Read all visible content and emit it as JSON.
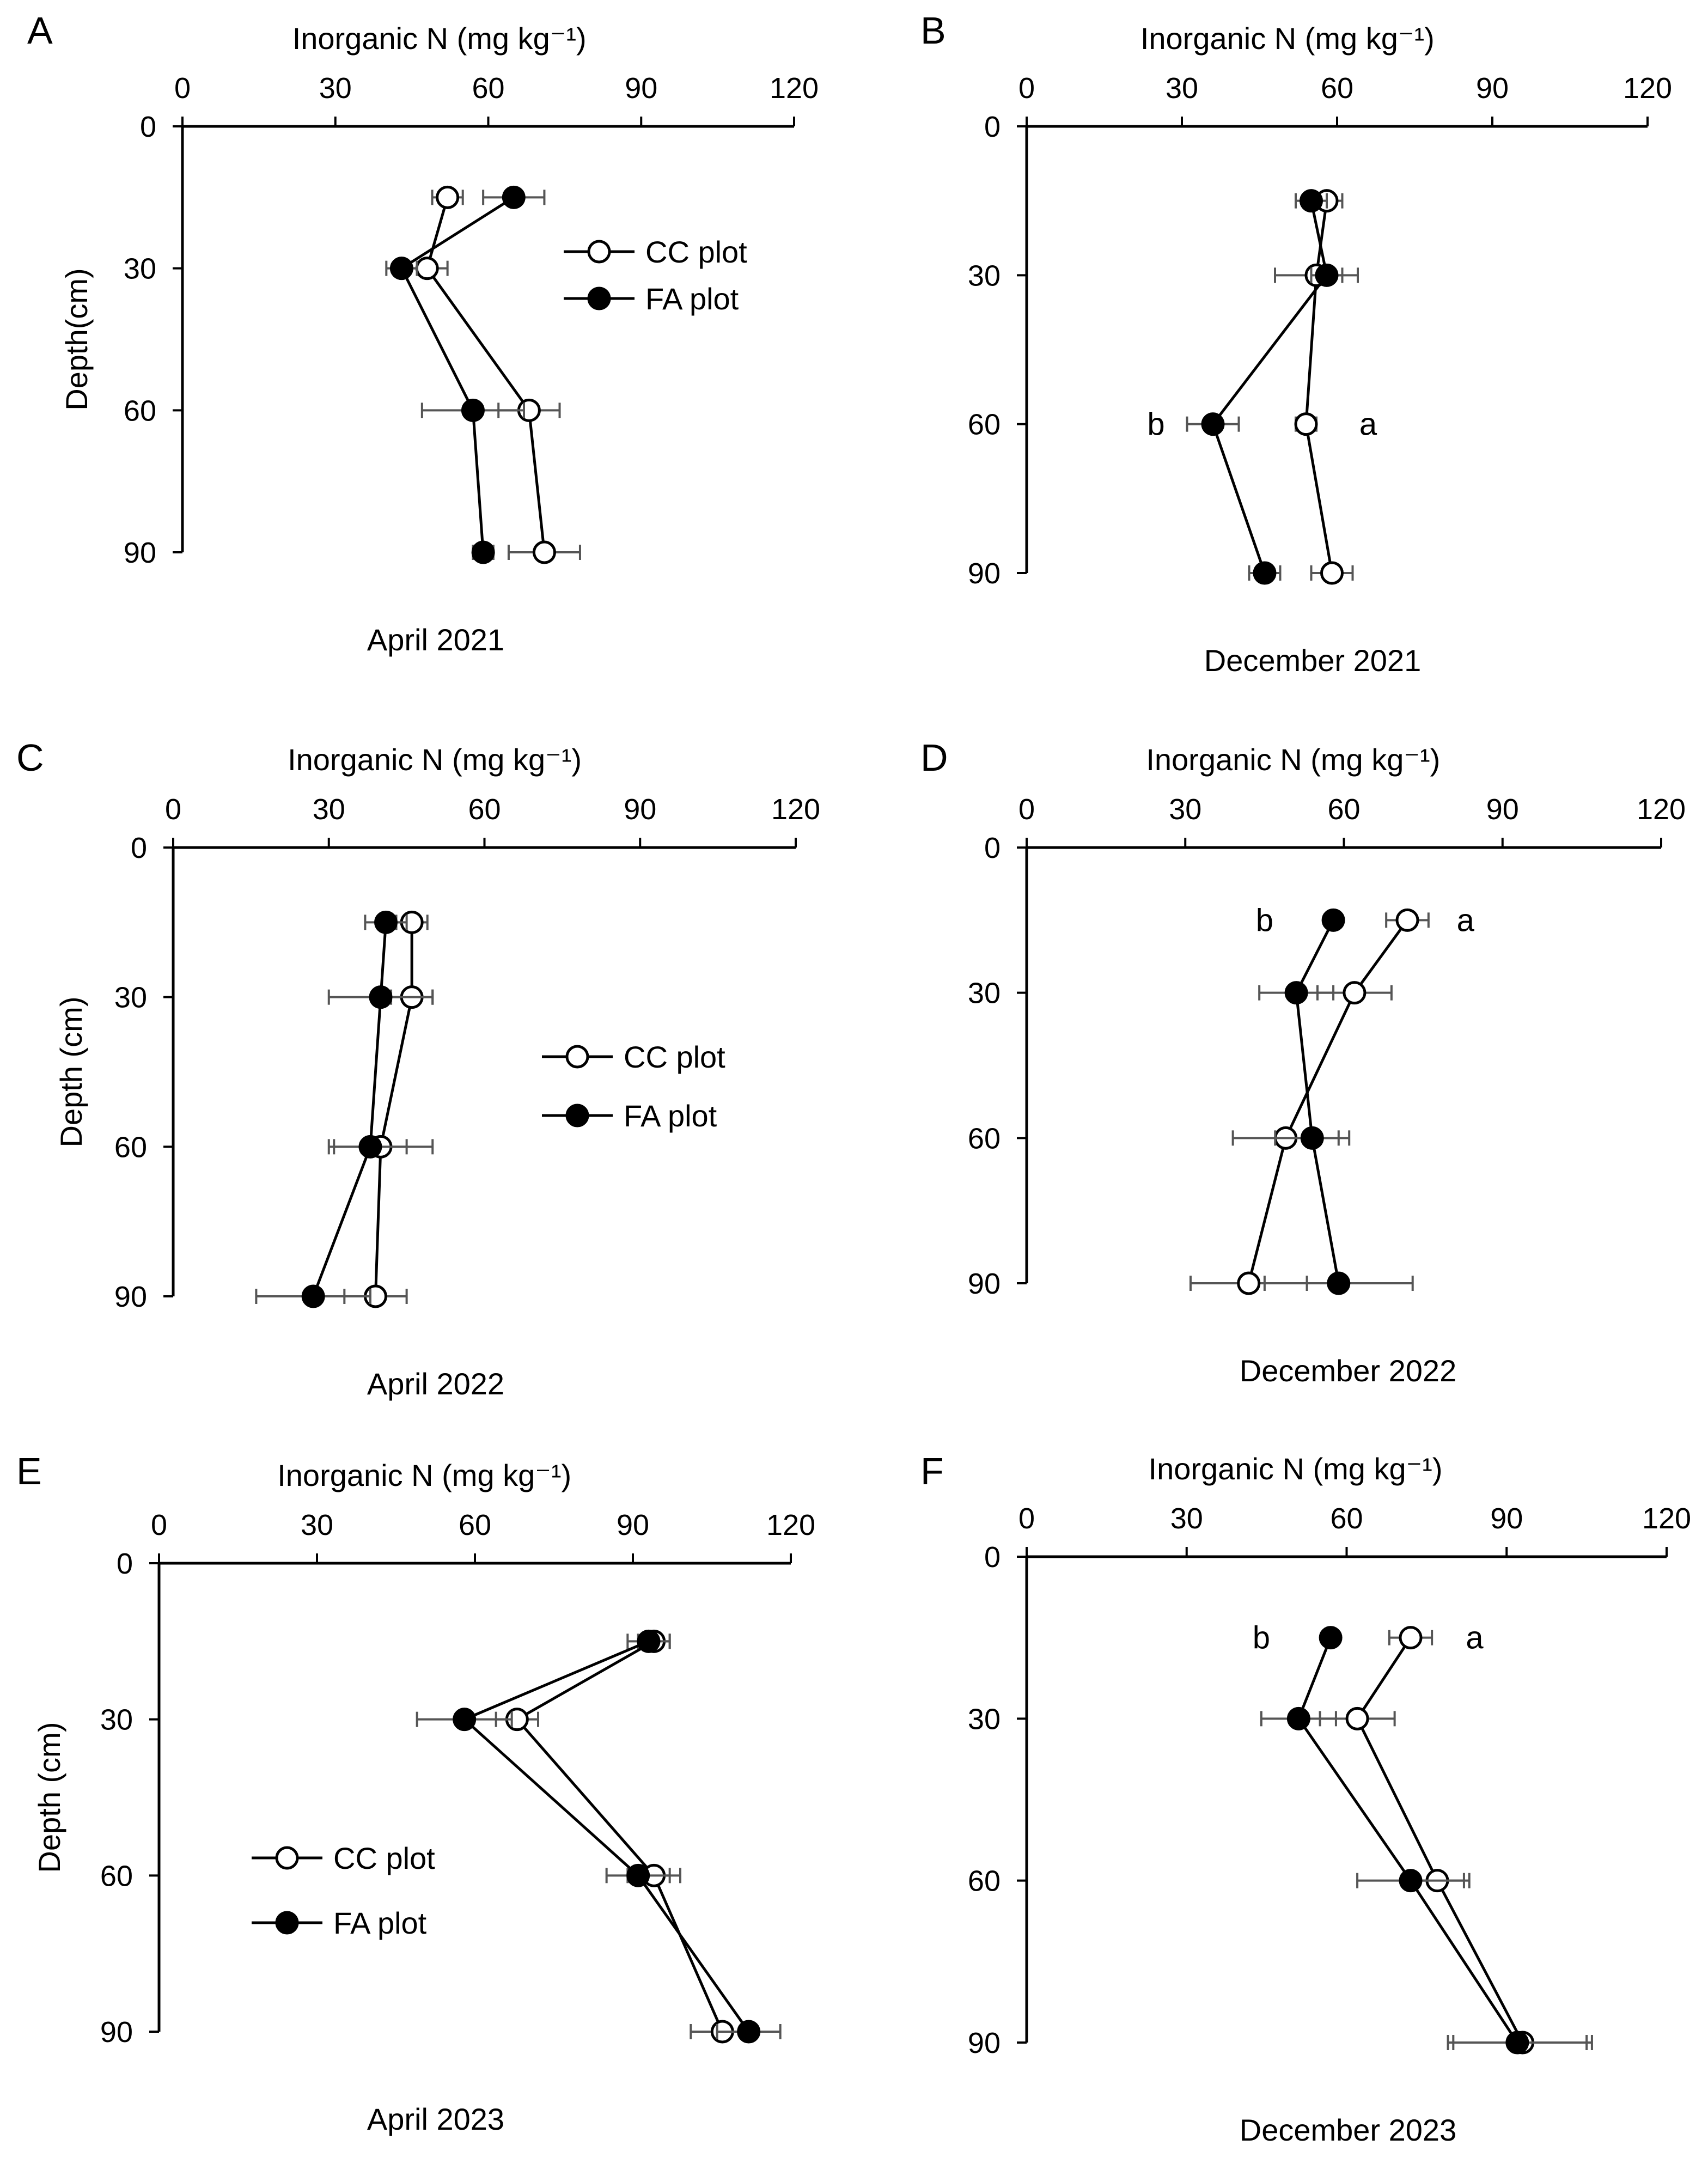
{
  "figure": {
    "panels": [
      {
        "letter": "A",
        "subtitle": "April 2021",
        "sig_labels": [],
        "chart_data": {
          "type": "line",
          "xlabel": "Inorganic N (mg kg⁻¹)",
          "ylabel": "Depth(cm)",
          "xlim": [
            0,
            120
          ],
          "ylim": [
            0,
            90
          ],
          "x_ticks": [
            "0",
            "30",
            "60",
            "90",
            "120"
          ],
          "y_ticks": [
            "0",
            "30",
            "60",
            "90"
          ],
          "legend_placement": "right-upper",
          "series": [
            {
              "name": "CC plot",
              "marker": "open-circle",
              "depth": [
                15,
                30,
                60,
                90
              ],
              "values": [
                52,
                48,
                68,
                71
              ],
              "err": [
                3,
                4,
                6,
                7
              ]
            },
            {
              "name": "FA plot",
              "marker": "filled-circle",
              "depth": [
                15,
                30,
                60,
                90
              ],
              "values": [
                65,
                43,
                57,
                59
              ],
              "err": [
                6,
                3,
                10,
                2
              ]
            }
          ]
        }
      },
      {
        "letter": "B",
        "subtitle": "December 2021",
        "sig_labels": [
          {
            "text": "b",
            "x": 25,
            "depth": 60
          },
          {
            "text": "a",
            "x": 66,
            "depth": 60
          }
        ],
        "chart_data": {
          "type": "line",
          "xlabel": "Inorganic N (mg kg⁻¹)",
          "ylabel": "",
          "xlim": [
            0,
            120
          ],
          "ylim": [
            0,
            90
          ],
          "x_ticks": [
            "0",
            "30",
            "60",
            "90",
            "120"
          ],
          "y_ticks": [
            "0",
            "30",
            "60",
            "90"
          ],
          "legend_placement": "none",
          "series": [
            {
              "name": "CC plot",
              "marker": "open-circle",
              "depth": [
                15,
                30,
                60,
                90
              ],
              "values": [
                58,
                56,
                54,
                59
              ],
              "err": [
                3,
                8,
                2,
                4
              ]
            },
            {
              "name": "FA plot",
              "marker": "filled-circle",
              "depth": [
                15,
                30,
                60,
                90
              ],
              "values": [
                55,
                58,
                36,
                46
              ],
              "err": [
                3,
                3,
                5,
                3
              ]
            }
          ]
        }
      },
      {
        "letter": "C",
        "subtitle": "April 2022",
        "sig_labels": [],
        "chart_data": {
          "type": "line",
          "xlabel": "Inorganic N (mg kg⁻¹)",
          "ylabel": "Depth (cm)",
          "xlim": [
            0,
            120
          ],
          "ylim": [
            0,
            90
          ],
          "x_ticks": [
            "0",
            "30",
            "60",
            "90",
            "120"
          ],
          "y_ticks": [
            "0",
            "30",
            "60",
            "90"
          ],
          "legend_placement": "right-middle",
          "series": [
            {
              "name": "CC plot",
              "marker": "open-circle",
              "depth": [
                15,
                30,
                60,
                90
              ],
              "values": [
                46,
                46,
                40,
                39
              ],
              "err": [
                3,
                4,
                10,
                6
              ]
            },
            {
              "name": "FA plot",
              "marker": "filled-circle",
              "depth": [
                15,
                30,
                60,
                90
              ],
              "values": [
                41,
                40,
                38,
                27
              ],
              "err": [
                4,
                10,
                7,
                11
              ]
            }
          ]
        }
      },
      {
        "letter": "D",
        "subtitle": "December 2022",
        "sig_labels": [
          {
            "text": "b",
            "x": 45,
            "depth": 15
          },
          {
            "text": "a",
            "x": 83,
            "depth": 15
          }
        ],
        "chart_data": {
          "type": "line",
          "xlabel": "Inorganic N (mg kg⁻¹)",
          "ylabel": "",
          "xlim": [
            0,
            120
          ],
          "ylim": [
            0,
            90
          ],
          "x_ticks": [
            "0",
            "30",
            "60",
            "90",
            "120"
          ],
          "y_ticks": [
            "0",
            "30",
            "60",
            "90"
          ],
          "legend_placement": "none",
          "series": [
            {
              "name": "CC plot",
              "marker": "open-circle",
              "depth": [
                15,
                30,
                60,
                90
              ],
              "values": [
                72,
                62,
                49,
                42
              ],
              "err": [
                4,
                7,
                10,
                11
              ]
            },
            {
              "name": "FA plot",
              "marker": "filled-circle",
              "depth": [
                15,
                30,
                60,
                90
              ],
              "values": [
                58,
                51,
                54,
                59
              ],
              "err": [
                1,
                7,
                7,
                14
              ]
            }
          ]
        }
      },
      {
        "letter": "E",
        "subtitle": "April 2023",
        "sig_labels": [],
        "chart_data": {
          "type": "line",
          "xlabel": "Inorganic N (mg kg⁻¹)",
          "ylabel": "Depth (cm)",
          "xlim": [
            0,
            120
          ],
          "ylim": [
            0,
            90
          ],
          "x_ticks": [
            "0",
            "30",
            "60",
            "90",
            "120"
          ],
          "y_ticks": [
            "0",
            "30",
            "60",
            "90"
          ],
          "legend_placement": "lower-left",
          "series": [
            {
              "name": "CC plot",
              "marker": "open-circle",
              "depth": [
                15,
                30,
                60,
                90
              ],
              "values": [
                94,
                68,
                94,
                107
              ],
              "err": [
                3,
                4,
                5,
                6
              ]
            },
            {
              "name": "FA plot",
              "marker": "filled-circle",
              "depth": [
                15,
                30,
                60,
                90
              ],
              "values": [
                93,
                58,
                91,
                112
              ],
              "err": [
                4,
                9,
                6,
                6
              ]
            }
          ]
        }
      },
      {
        "letter": "F",
        "subtitle": "December 2023",
        "sig_labels": [
          {
            "text": "b",
            "x": 44,
            "depth": 15
          },
          {
            "text": "a",
            "x": 84,
            "depth": 15
          }
        ],
        "chart_data": {
          "type": "line",
          "xlabel": "Inorganic N (mg kg⁻¹)",
          "ylabel": "",
          "xlim": [
            0,
            120
          ],
          "ylim": [
            0,
            90
          ],
          "x_ticks": [
            "0",
            "30",
            "60",
            "90",
            "120"
          ],
          "y_ticks": [
            "0",
            "30",
            "60",
            "90"
          ],
          "legend_placement": "none",
          "series": [
            {
              "name": "CC plot",
              "marker": "open-circle",
              "depth": [
                15,
                30,
                60,
                90
              ],
              "values": [
                72,
                62,
                77,
                93
              ],
              "err": [
                4,
                7,
                6,
                13
              ]
            },
            {
              "name": "FA plot",
              "marker": "filled-circle",
              "depth": [
                15,
                30,
                60,
                90
              ],
              "values": [
                57,
                51,
                72,
                92
              ],
              "err": [
                1,
                7,
                10,
                13
              ]
            }
          ]
        }
      }
    ]
  }
}
